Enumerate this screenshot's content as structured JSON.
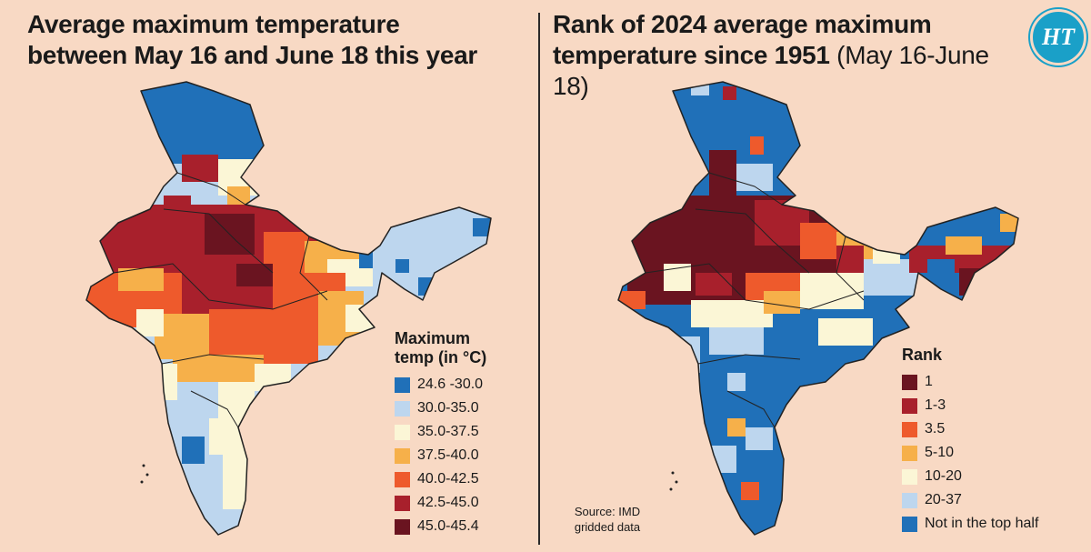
{
  "left_panel": {
    "title_line1": "Average maximum temperature",
    "title_line2": "between May 16 and June 18 this year",
    "legend_title_line1": "Maximum",
    "legend_title_line2": "temp (in °C)",
    "legend": [
      {
        "label": "24.6 -30.0",
        "color": "#2070b8"
      },
      {
        "label": "30.0-35.0",
        "color": "#bdd6ee"
      },
      {
        "label": "35.0-37.5",
        "color": "#fbf6d6"
      },
      {
        "label": "37.5-40.0",
        "color": "#f6b04a"
      },
      {
        "label": "40.0-42.5",
        "color": "#ee5a2c"
      },
      {
        "label": "42.5-45.0",
        "color": "#a8202c"
      },
      {
        "label": "45.0-45.4",
        "color": "#6a1420"
      }
    ]
  },
  "right_panel": {
    "title_line1": "Rank of 2024 average maximum",
    "title_line2_bold": "temperature since 1951",
    "title_line2_normal": "(May 16-June 18)",
    "legend_title": "Rank",
    "legend": [
      {
        "label": "1",
        "color": "#6a1420"
      },
      {
        "label": "1-3",
        "color": "#a8202c"
      },
      {
        "label": "3.5",
        "color": "#ee5a2c"
      },
      {
        "label": "5-10",
        "color": "#f6b04a"
      },
      {
        "label": "10-20",
        "color": "#fbf6d6"
      },
      {
        "label": "20-37",
        "color": "#bdd6ee"
      },
      {
        "label": "Not in the top half",
        "color": "#2070b8"
      }
    ],
    "source_line1": "Source: IMD",
    "source_line2": "gridded data",
    "logo_text": "HT"
  }
}
